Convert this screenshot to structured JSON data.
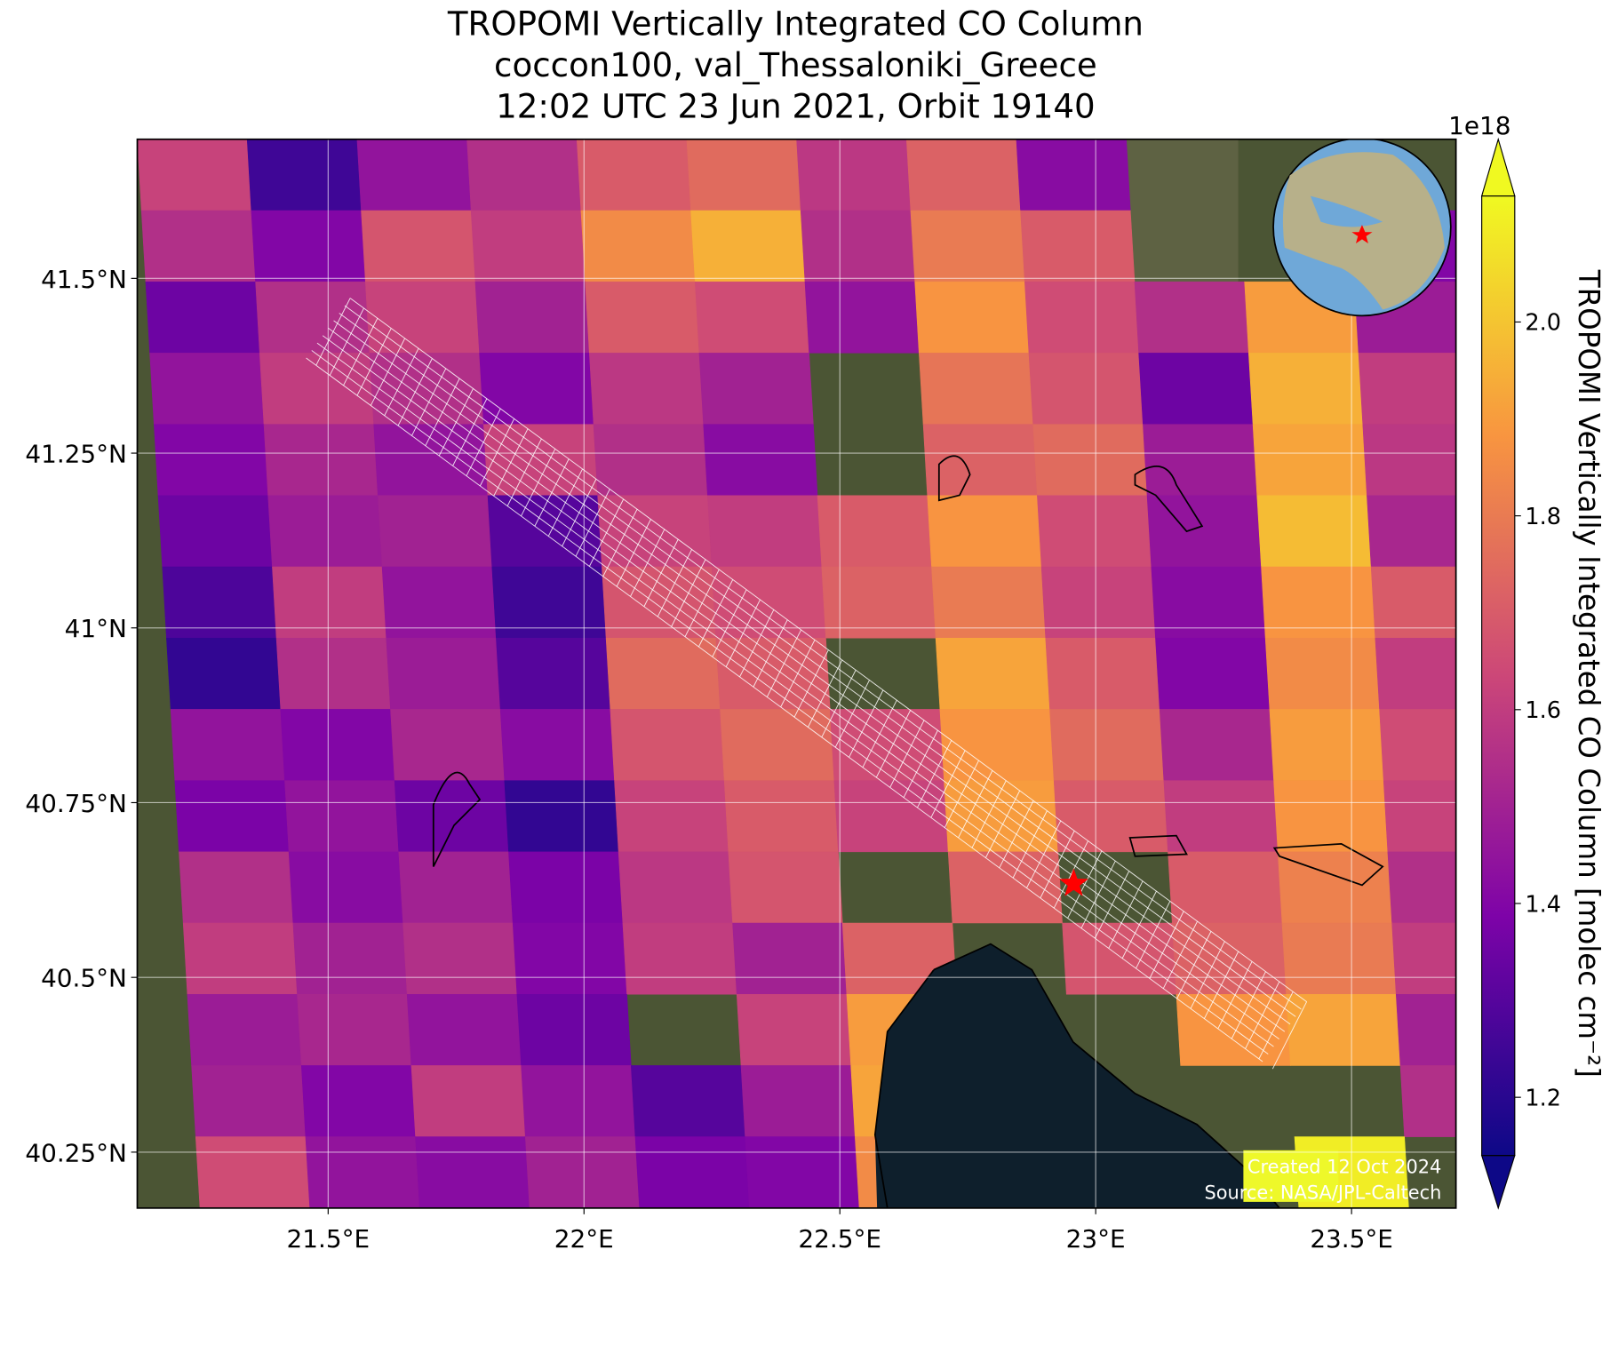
{
  "chart_data": {
    "type": "pixelmap",
    "title_lines": [
      "TROPOMI Vertically Integrated CO Column",
      "coccon100, val_Thessaloniki_Greece",
      "12:02 UTC 23 Jun 2021, Orbit 19140"
    ],
    "xlim": [
      21.127,
      23.704
    ],
    "ylim": [
      40.17,
      41.699
    ],
    "xticks": [
      {
        "value": 21.5,
        "label": "21.5°E"
      },
      {
        "value": 22,
        "label": "22°E"
      },
      {
        "value": 22.5,
        "label": "22.5°E"
      },
      {
        "value": 23,
        "label": "23°E"
      },
      {
        "value": 23.5,
        "label": "23.5°E"
      }
    ],
    "yticks": [
      {
        "value": 41.5,
        "label": "41.5°N"
      },
      {
        "value": 41.25,
        "label": "41.25°N"
      },
      {
        "value": 41,
        "label": "41°N"
      },
      {
        "value": 40.75,
        "label": "40.75°N"
      },
      {
        "value": 40.5,
        "label": "40.5°N"
      },
      {
        "value": 40.25,
        "label": "40.25°N"
      }
    ],
    "grid": true,
    "colorbar": {
      "label": "TROPOMI Vertically Integrated CO Column [molec cm⁻²]",
      "exponent": "1e18",
      "lim": [
        1.14,
        2.13
      ],
      "ticks": [
        1.2,
        1.4,
        1.6,
        1.8,
        {
          "value": 2,
          "label": "2.0"
        }
      ],
      "colormap": "plasma"
    },
    "values": [
      [
        1.62,
        1.25,
        1.45,
        1.55,
        1.7,
        1.75,
        1.58,
        1.72,
        1.42,
        null,
        null,
        null
      ],
      [
        1.55,
        1.4,
        1.68,
        1.6,
        1.85,
        1.95,
        1.55,
        1.8,
        1.7,
        null,
        null,
        1.4
      ],
      [
        1.35,
        1.55,
        1.62,
        1.5,
        1.7,
        1.65,
        1.45,
        1.88,
        1.65,
        1.55,
        1.9,
        1.48
      ],
      [
        1.45,
        1.6,
        1.55,
        1.4,
        1.58,
        1.5,
        null,
        1.78,
        1.68,
        1.35,
        1.95,
        1.6
      ],
      [
        1.4,
        1.52,
        1.45,
        1.62,
        1.55,
        1.42,
        null,
        1.72,
        1.75,
        1.48,
        1.92,
        1.58
      ],
      [
        1.35,
        1.48,
        1.5,
        1.3,
        1.62,
        1.6,
        1.7,
        1.88,
        1.65,
        1.45,
        1.98,
        1.52
      ],
      [
        1.28,
        1.6,
        1.45,
        1.25,
        1.68,
        1.65,
        1.72,
        1.8,
        1.62,
        1.42,
        1.88,
        1.7
      ],
      [
        1.22,
        1.55,
        1.48,
        1.3,
        1.75,
        1.7,
        null,
        1.92,
        1.7,
        1.4,
        1.85,
        1.6
      ],
      [
        1.45,
        1.4,
        1.52,
        1.42,
        1.68,
        1.75,
        1.65,
        1.88,
        1.75,
        1.52,
        1.9,
        1.65
      ],
      [
        1.38,
        1.45,
        1.35,
        1.22,
        1.62,
        1.7,
        1.62,
        1.9,
        1.7,
        1.6,
        1.88,
        1.62
      ],
      [
        1.55,
        1.42,
        1.5,
        1.38,
        1.58,
        1.68,
        null,
        1.72,
        null,
        1.7,
        1.82,
        1.55
      ],
      [
        1.6,
        1.5,
        1.55,
        1.4,
        1.6,
        1.5,
        1.72,
        null,
        1.68,
        1.72,
        1.8,
        1.6
      ],
      [
        1.48,
        1.52,
        1.45,
        1.35,
        null,
        1.62,
        1.9,
        null,
        null,
        1.88,
        1.92,
        1.5
      ],
      [
        1.5,
        1.4,
        1.6,
        1.45,
        1.3,
        1.48,
        1.92,
        null,
        null,
        null,
        null,
        1.55
      ],
      [
        1.65,
        1.45,
        1.42,
        1.5,
        1.38,
        1.4,
        1.85,
        null,
        null,
        null,
        2.1,
        null
      ]
    ],
    "station": {
      "lon": 22.957,
      "lat": 40.634
    },
    "annotations": [
      "Created 12 Oct 2024",
      "Source: NASA/JPL-Caltech"
    ]
  }
}
